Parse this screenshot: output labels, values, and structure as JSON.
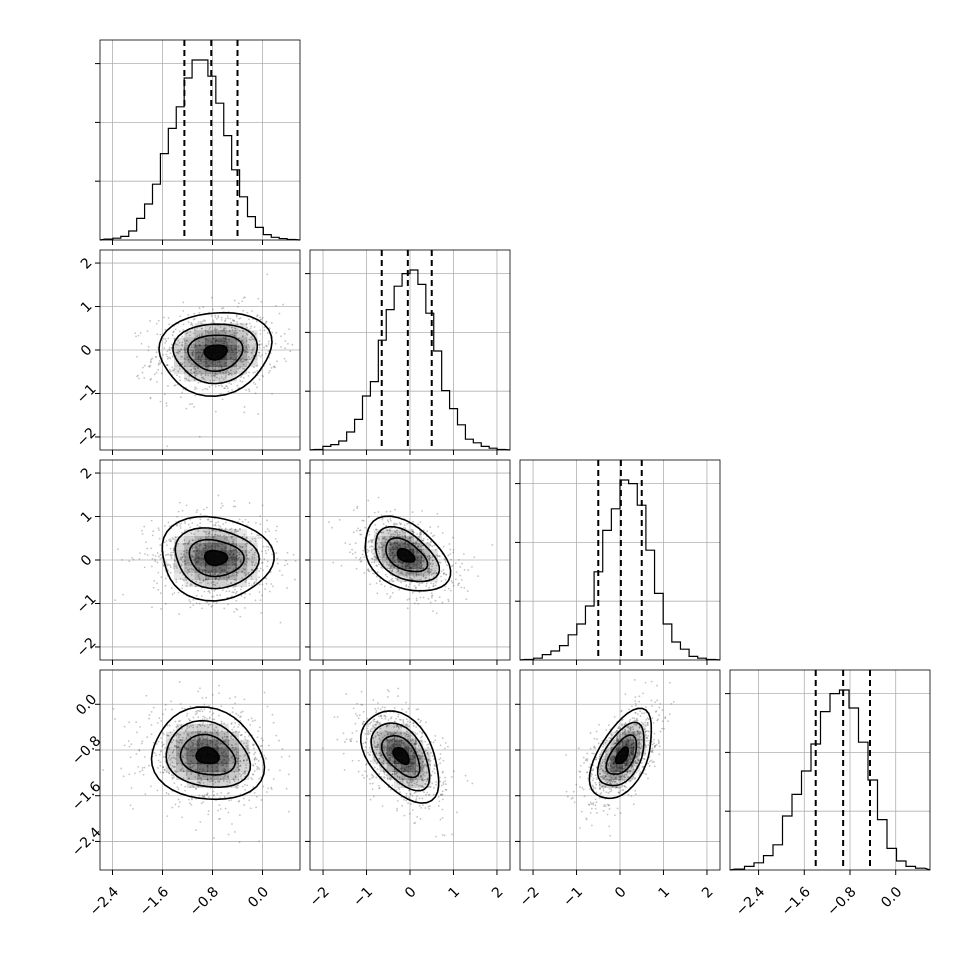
{
  "chart_data": {
    "type": "corner",
    "title": "",
    "parameters": [
      {
        "range": [
          -2.6,
          0.6
        ],
        "ticks": [
          "−2.4",
          "−1.6",
          "−0.8",
          "0.0"
        ],
        "tick_values": [
          -2.4,
          -1.6,
          -0.8,
          0.0
        ],
        "quantiles": [
          -1.25,
          -0.82,
          -0.4
        ],
        "hist": [
          0.005,
          0.01,
          0.02,
          0.05,
          0.12,
          0.2,
          0.31,
          0.48,
          0.62,
          0.74,
          0.9,
          1.0,
          1.0,
          0.91,
          0.76,
          0.58,
          0.39,
          0.24,
          0.13,
          0.07,
          0.03,
          0.015,
          0.008,
          0.003
        ]
      },
      {
        "range": [
          -2.3,
          2.3
        ],
        "ticks": [
          "−2",
          "−1",
          "0",
          "1",
          "2"
        ],
        "tick_values": [
          -2,
          -1,
          0,
          1,
          2
        ],
        "quantiles": [
          -0.65,
          -0.05,
          0.5
        ],
        "hist": [
          0.003,
          0.02,
          0.03,
          0.05,
          0.1,
          0.17,
          0.3,
          0.38,
          0.61,
          0.78,
          0.91,
          0.98,
          1.0,
          0.92,
          0.76,
          0.55,
          0.33,
          0.23,
          0.14,
          0.06,
          0.04,
          0.02,
          0.01,
          0.003
        ]
      },
      {
        "range": [
          -2.3,
          2.3
        ],
        "ticks": [
          "−2",
          "−1",
          "0",
          "1",
          "2"
        ],
        "tick_values": [
          -2,
          -1,
          0,
          1,
          2
        ],
        "quantiles": [
          -0.5,
          0.02,
          0.5
        ],
        "hist": [
          0.003,
          0.01,
          0.03,
          0.05,
          0.08,
          0.14,
          0.2,
          0.3,
          0.49,
          0.72,
          0.84,
          1.0,
          0.98,
          0.86,
          0.61,
          0.37,
          0.2,
          0.1,
          0.06,
          0.02,
          0.01,
          0.003
        ]
      },
      {
        "range": [
          -2.9,
          0.6
        ],
        "ticks": [
          "−2.4",
          "−1.6",
          "−0.8",
          "0.0"
        ],
        "tick_values": [
          -2.4,
          -1.6,
          -0.8,
          0.0
        ],
        "quantiles": [
          -1.4,
          -0.92,
          -0.45
        ],
        "hist": [
          0.005,
          0.02,
          0.04,
          0.08,
          0.14,
          0.3,
          0.42,
          0.55,
          0.7,
          0.88,
          0.98,
          1.0,
          0.9,
          0.71,
          0.5,
          0.28,
          0.12,
          0.05,
          0.02,
          0.01
        ]
      }
    ],
    "pairs": [
      {
        "row": 1,
        "col": 0,
        "center": [
          -0.75,
          -0.05
        ],
        "sigma": [
          0.5,
          0.5
        ],
        "rho": 0.1
      },
      {
        "row": 2,
        "col": 0,
        "center": [
          -0.75,
          0.05
        ],
        "sigma": [
          0.5,
          0.5
        ],
        "rho": -0.05
      },
      {
        "row": 2,
        "col": 1,
        "center": [
          -0.1,
          0.1
        ],
        "sigma": [
          0.55,
          0.45
        ],
        "rho": -0.4
      },
      {
        "row": 3,
        "col": 0,
        "center": [
          -0.88,
          -0.9
        ],
        "sigma": [
          0.5,
          0.42
        ],
        "rho": -0.1
      },
      {
        "row": 3,
        "col": 1,
        "center": [
          -0.2,
          -0.9
        ],
        "sigma": [
          0.5,
          0.42
        ],
        "rho": -0.45
      },
      {
        "row": 3,
        "col": 2,
        "center": [
          0.05,
          -0.9
        ],
        "sigma": [
          0.4,
          0.42
        ],
        "rho": 0.55
      }
    ],
    "grid": true,
    "colors": {
      "line": "#000000",
      "grid": "#b0b0b0",
      "points": "#555555",
      "density": "#000000"
    }
  }
}
